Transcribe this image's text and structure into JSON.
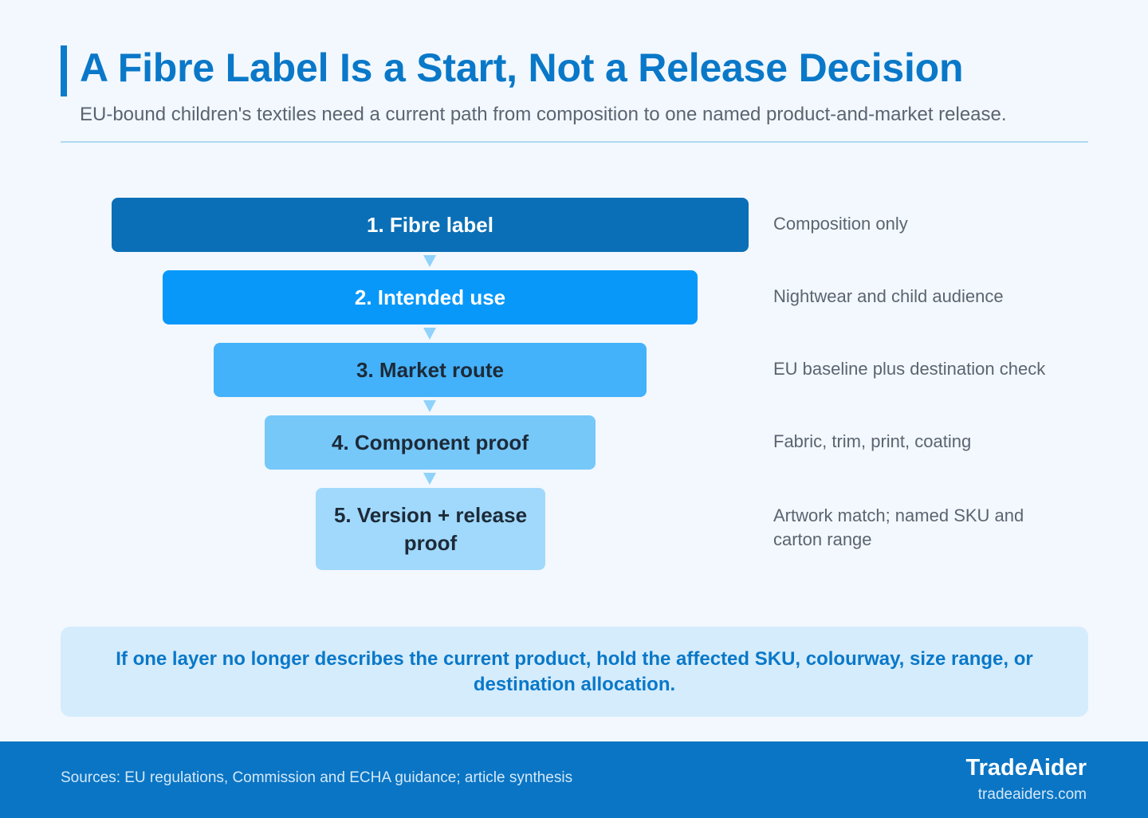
{
  "header": {
    "title": "A Fibre Label Is a Start, Not a Release Decision",
    "subtitle": "EU-bound children's textiles need a current path from composition to one named product-and-market release."
  },
  "funnel": {
    "steps": [
      {
        "label": "1. Fibre label",
        "note": "Composition only",
        "color": "#0a6fb6"
      },
      {
        "label": "2. Intended use",
        "note": "Nightwear and child audience",
        "color": "#0898fa"
      },
      {
        "label": "3. Market route",
        "note": "EU baseline plus destination check",
        "color": "#44b2fa"
      },
      {
        "label": "4. Component proof",
        "note": "Fabric, trim, print, coating",
        "color": "#76c8f9"
      },
      {
        "label": "5. Version + release proof",
        "note": "Artwork match; named SKU and carton range",
        "color": "#a0d9fc"
      }
    ]
  },
  "callout": {
    "text": "If one layer no longer describes the current product, hold the affected SKU, colourway, size range, or destination allocation."
  },
  "footer": {
    "sources": "Sources: EU regulations, Commission and ECHA guidance; article synthesis",
    "brand": "TradeAider",
    "url": "tradeaiders.com"
  },
  "colors": {
    "accent": "#0a78c8",
    "footer_bg": "#0a75c4",
    "page_bg": "#f2f8fe"
  }
}
